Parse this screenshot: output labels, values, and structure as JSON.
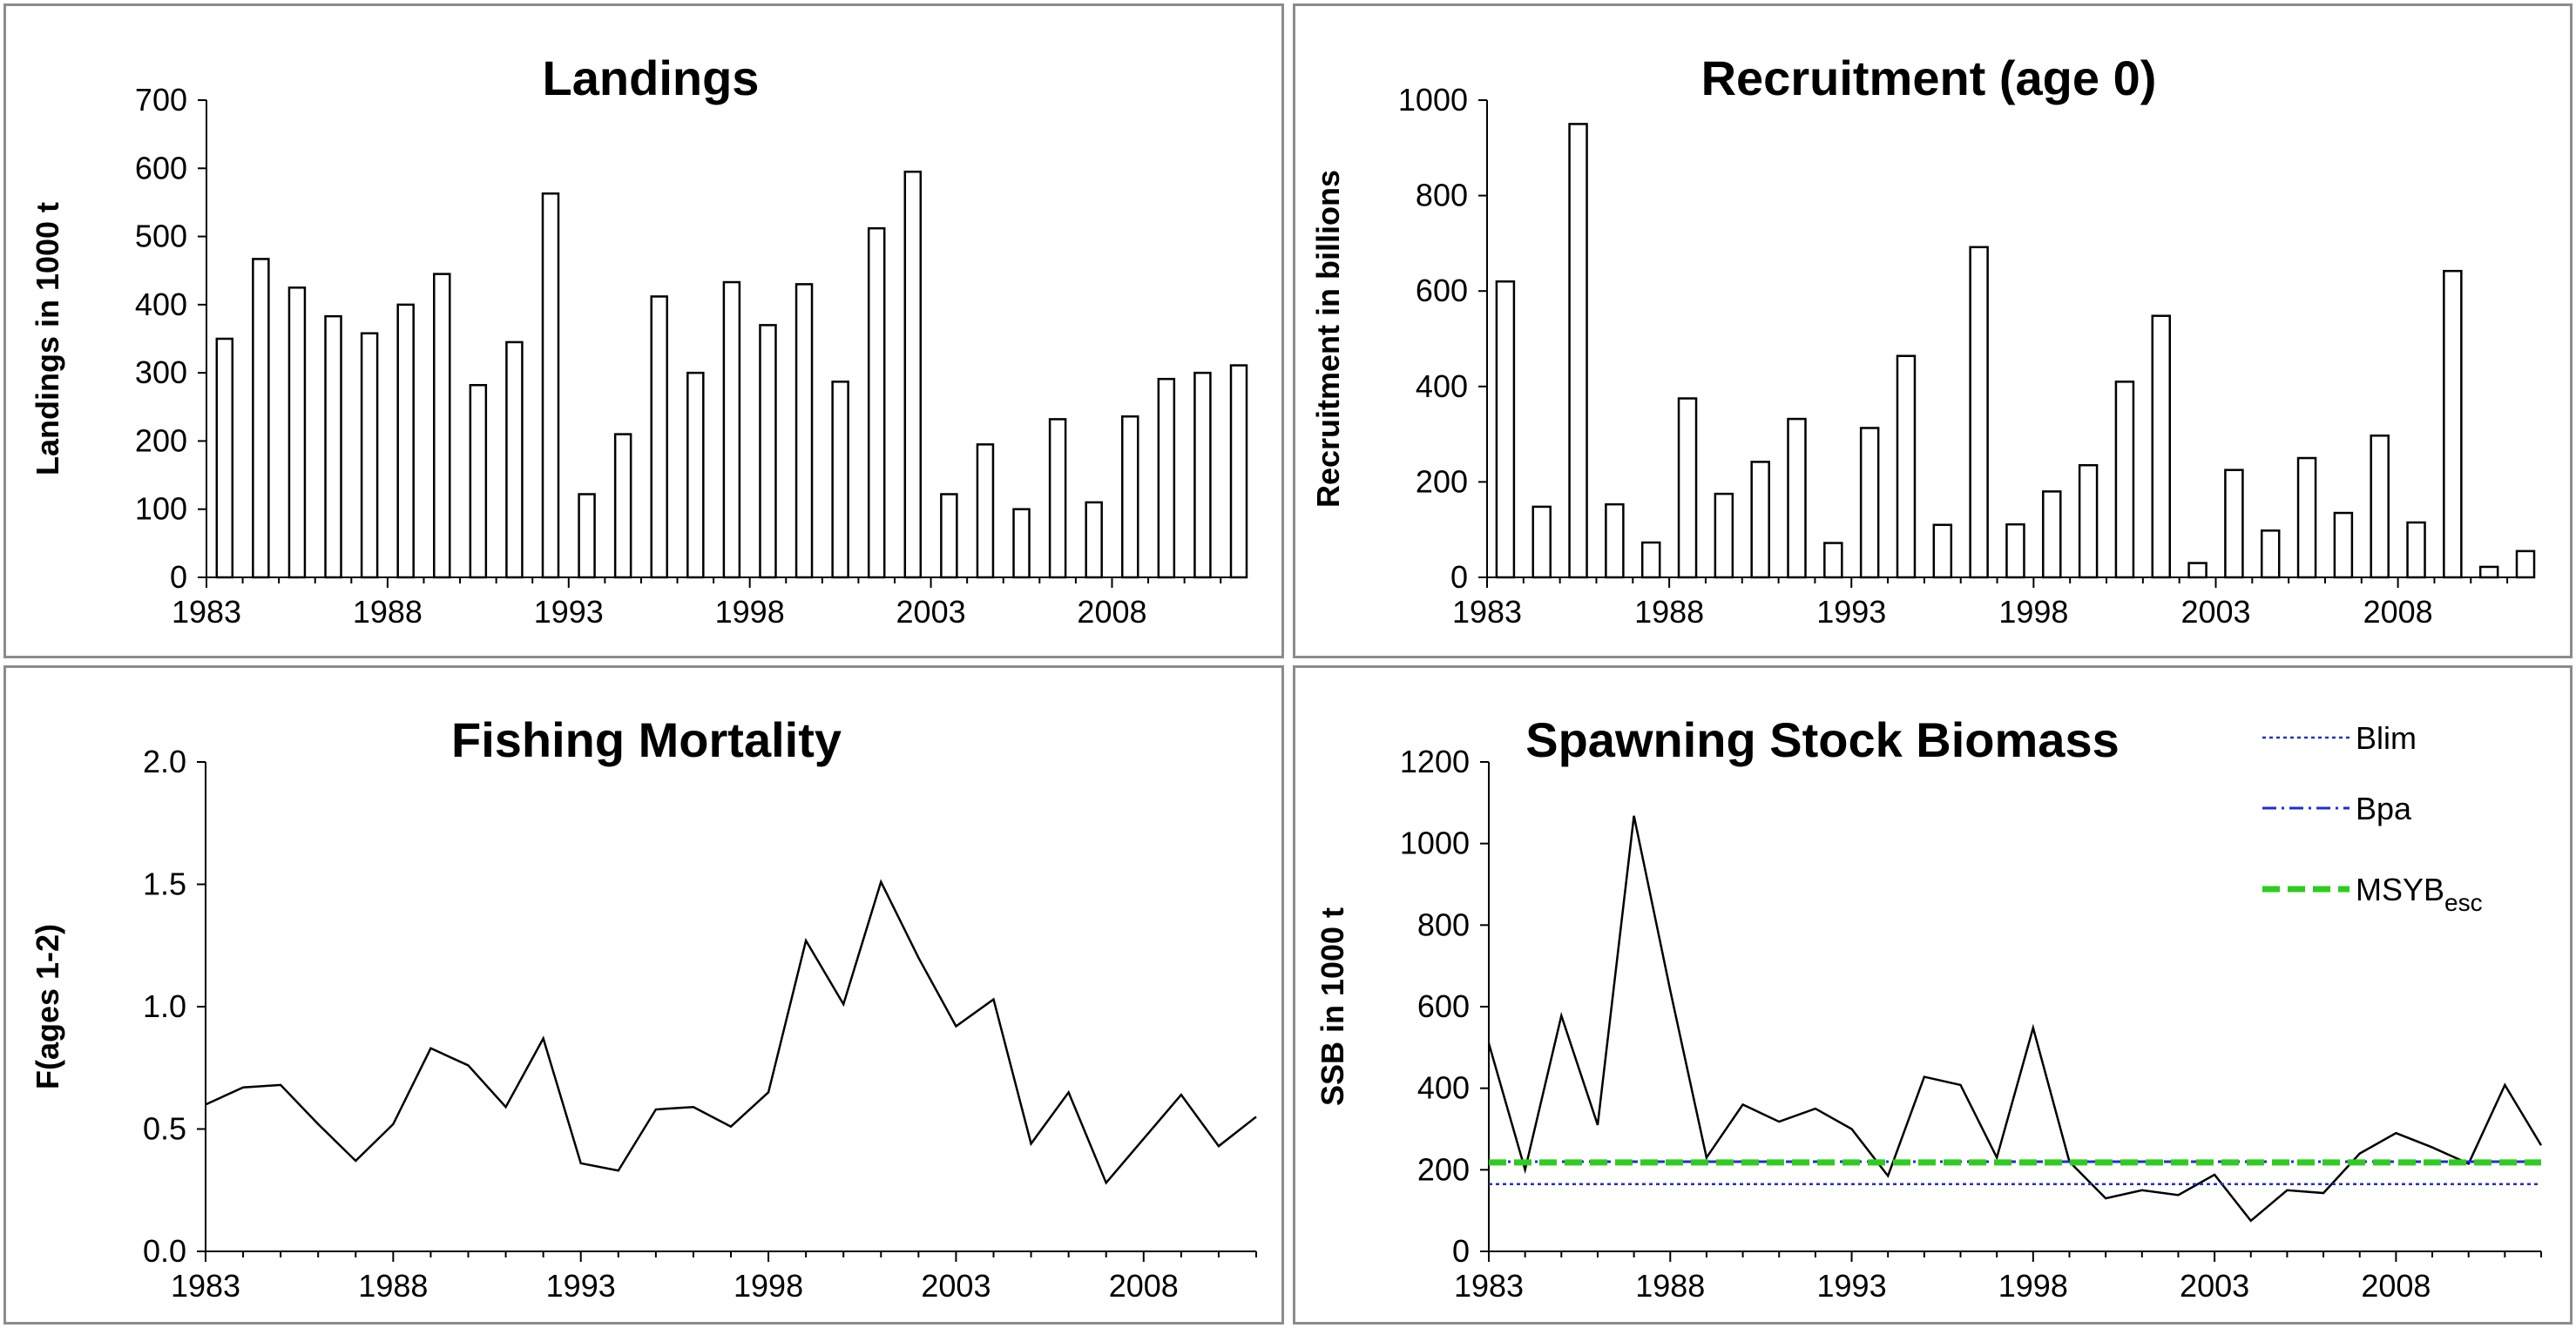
{
  "chart_data": [
    {
      "id": "landings",
      "type": "bar",
      "title": "Landings",
      "ylabel": "Landings in 1000 t",
      "xlabel": "",
      "ylim": [
        0,
        700
      ],
      "yticks": [
        "0",
        "100",
        "200",
        "300",
        "400",
        "500",
        "600",
        "700"
      ],
      "xticks": [
        "1983",
        "1988",
        "1993",
        "1998",
        "2003",
        "2008"
      ],
      "categories": [
        1983,
        1984,
        1985,
        1986,
        1987,
        1988,
        1989,
        1990,
        1991,
        1992,
        1993,
        1994,
        1995,
        1996,
        1997,
        1998,
        1999,
        2000,
        2001,
        2002,
        2003,
        2004,
        2005,
        2006,
        2007,
        2008,
        2009,
        2010,
        2011
      ],
      "values": [
        350,
        467,
        425,
        383,
        358,
        400,
        445,
        282,
        345,
        563,
        122,
        210,
        412,
        300,
        433,
        370,
        430,
        287,
        512,
        595,
        122,
        195,
        100,
        232,
        110,
        236,
        291,
        300,
        311
      ]
    },
    {
      "id": "recruitment",
      "type": "bar",
      "title": "Recruitment (age 0)",
      "ylabel": "Recruitment in billions",
      "xlabel": "",
      "ylim": [
        0,
        1000
      ],
      "yticks": [
        "0",
        "200",
        "400",
        "600",
        "800",
        "1000"
      ],
      "xticks": [
        "1983",
        "1988",
        "1993",
        "1998",
        "2003",
        "2008"
      ],
      "categories": [
        1983,
        1984,
        1985,
        1986,
        1987,
        1988,
        1989,
        1990,
        1991,
        1992,
        1993,
        1994,
        1995,
        1996,
        1997,
        1998,
        1999,
        2000,
        2001,
        2002,
        2003,
        2004,
        2005,
        2006,
        2007,
        2008,
        2009,
        2010,
        2011
      ],
      "values": [
        620,
        148,
        950,
        153,
        73,
        375,
        175,
        242,
        332,
        72,
        313,
        464,
        110,
        692,
        111,
        180,
        235,
        410,
        548,
        30,
        225,
        98,
        250,
        135,
        297,
        115,
        642,
        22,
        55
      ]
    },
    {
      "id": "fishing-mortality",
      "type": "line",
      "title": "Fishing Mortality",
      "ylabel": "F(ages 1-2)",
      "xlabel": "",
      "ylim": [
        0,
        2.0
      ],
      "yticks": [
        "0.0",
        "0.5",
        "1.0",
        "1.5",
        "2.0"
      ],
      "xticks": [
        "1983",
        "1988",
        "1993",
        "1998",
        "2003",
        "2008"
      ],
      "x": [
        1983,
        1984,
        1985,
        1986,
        1987,
        1988,
        1989,
        1990,
        1991,
        1992,
        1993,
        1994,
        1995,
        1996,
        1997,
        1998,
        1999,
        2000,
        2001,
        2002,
        2003,
        2004,
        2005,
        2006,
        2007,
        2008,
        2009,
        2010,
        2011
      ],
      "values": [
        0.6,
        0.67,
        0.68,
        0.52,
        0.37,
        0.52,
        0.83,
        0.76,
        0.59,
        0.87,
        0.36,
        0.33,
        0.58,
        0.59,
        0.51,
        0.65,
        1.27,
        1.01,
        1.51,
        1.2,
        0.92,
        1.03,
        0.44,
        0.65,
        0.28,
        0.46,
        0.64,
        0.43,
        0.55
      ]
    },
    {
      "id": "ssb",
      "type": "line",
      "title": "Spawning Stock Biomass",
      "ylabel": "SSB in 1000 t",
      "xlabel": "",
      "ylim": [
        0,
        1200
      ],
      "yticks": [
        "0",
        "200",
        "400",
        "600",
        "800",
        "1000",
        "1200"
      ],
      "xticks": [
        "1983",
        "1988",
        "1993",
        "1998",
        "2003",
        "2008"
      ],
      "x": [
        1983,
        1984,
        1985,
        1986,
        1987,
        1988,
        1989,
        1990,
        1991,
        1992,
        1993,
        1994,
        1995,
        1996,
        1997,
        1998,
        1999,
        2000,
        2001,
        2002,
        2003,
        2004,
        2005,
        2006,
        2007,
        2008,
        2009,
        2010,
        2011,
        2012
      ],
      "series": [
        {
          "name": "SSB",
          "color": "#000000",
          "values": [
            510,
            200,
            578,
            310,
            1068,
            640,
            230,
            360,
            318,
            350,
            300,
            185,
            428,
            408,
            230,
            548,
            220,
            130,
            150,
            138,
            188,
            75,
            150,
            143,
            240,
            290,
            255,
            215,
            408,
            260
          ]
        },
        {
          "name": "Blim",
          "color": "#1f2fcf",
          "constant": 165
        },
        {
          "name": "Bpa",
          "color": "#1f2fcf",
          "constant": 220
        },
        {
          "name": "MSYB",
          "subscript": "esc",
          "color": "#2ecc1f",
          "constant": 218
        }
      ],
      "legend": {
        "position": "top-right",
        "items": [
          {
            "label": "Blim"
          },
          {
            "label": "Bpa"
          },
          {
            "label": "MSYB",
            "subscript": "esc"
          }
        ]
      }
    }
  ]
}
